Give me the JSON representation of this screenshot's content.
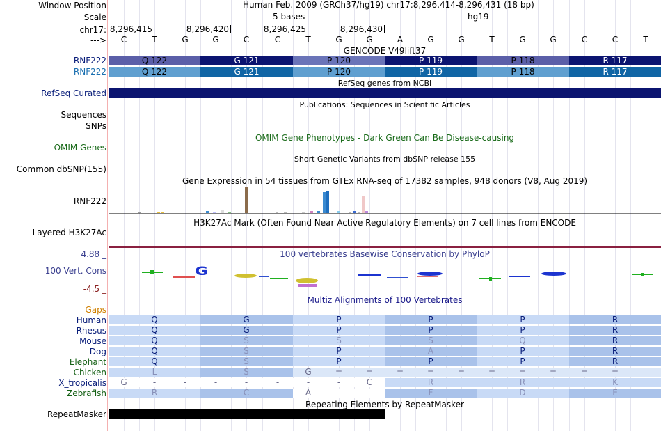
{
  "header": {
    "window_position_label": "Window Position",
    "window_position_value": "Human Feb. 2009 (GRCh37/hg19)   chr17:8,296,414-8,296,431 (18 bp)",
    "scale_label": "Scale",
    "scale_bases": "5 bases",
    "scale_db": "hg19",
    "chrom_label": "chr17:",
    "strand_label": "--->",
    "coords": [
      "8,296,415",
      "8,296,420",
      "8,296,425",
      "8,296,430"
    ],
    "bases": [
      "C",
      "T",
      "G",
      "G",
      "C",
      "C",
      "T",
      "G",
      "G",
      "A",
      "G",
      "G",
      "T",
      "G",
      "G",
      "C",
      "C",
      "T"
    ]
  },
  "gencode": {
    "title": "GENCODE V49lift37",
    "rows": [
      {
        "label": "RNF222",
        "label_color": "#0a1e7a",
        "cells": [
          "Q 122",
          "G 121",
          "P 120",
          "P 119",
          "P 118",
          "R 117"
        ],
        "colors": [
          "#5b5fa8",
          "#0b1470",
          "#6a74b8",
          "#0b1470",
          "#5b5fa8",
          "#0b1470"
        ]
      },
      {
        "label": "RNF222",
        "label_color": "#1a6fb0",
        "cells": [
          "Q 122",
          "G 121",
          "P 120",
          "P 119",
          "P 118",
          "R 117"
        ],
        "colors": [
          "#5f9fd0",
          "#1065a5",
          "#5f9fd0",
          "#1065a5",
          "#5f9fd0",
          "#1065a5"
        ]
      }
    ]
  },
  "refseq": {
    "title": "RefSeq genes from NCBI",
    "label": "RefSeq Curated",
    "color": "#0b1470"
  },
  "publications": {
    "title": "Publications: Sequences in Scientific Articles",
    "label_sequences": "Sequences",
    "label_snps": "SNPs"
  },
  "omim": {
    "title": "OMIM Gene Phenotypes - Dark Green Can Be Disease-causing",
    "label": "OMIM Genes",
    "color": "#1a6b1a"
  },
  "dbsnp": {
    "title": "Short Genetic Variants from dbSNP release 155",
    "label": "Common dbSNP(155)"
  },
  "gtex": {
    "title": "Gene Expression in 54 tissues from GTEx RNA-seq of 17382 samples, 948 donors (V8, Aug 2019)",
    "label": "RNF222"
  },
  "h3k27ac": {
    "title": "H3K27Ac Mark (Often Found Near Active Regulatory Elements) on 7 cell lines from ENCODE",
    "label": "Layered H3K27Ac"
  },
  "phylop": {
    "title": "100 vertebrates Basewise Conservation by PhyloP",
    "label": "100 Vert. Cons",
    "max": "4.88 _",
    "min": "-4.5 _",
    "color": "#3a3f8f"
  },
  "multiz": {
    "title": "Multiz Alignments of 100 Vertebrates",
    "gaps_label": "Gaps",
    "species": [
      {
        "name": "Human",
        "aa": [
          "Q",
          "G",
          "P",
          "P",
          "P",
          "R"
        ]
      },
      {
        "name": "Rhesus",
        "aa": [
          "Q",
          "G",
          "P",
          "P",
          "P",
          "R"
        ]
      },
      {
        "name": "Mouse",
        "aa": [
          "Q",
          "S",
          "S",
          "S",
          "Q",
          "R"
        ]
      },
      {
        "name": "Dog",
        "aa": [
          "Q",
          "S",
          "P",
          "A",
          "P",
          "R"
        ]
      },
      {
        "name": "Elephant",
        "aa": [
          "Q",
          "S",
          "P",
          "P",
          "P",
          "R"
        ]
      },
      {
        "name": "Chicken",
        "aa": [
          "L",
          "S",
          "",
          "",
          "",
          ""
        ]
      },
      {
        "name": "X_tropicalis",
        "aa": [
          "",
          "",
          "",
          "R",
          "R",
          "K"
        ]
      },
      {
        "name": "Zebrafish",
        "aa": [
          "R",
          "C",
          "",
          "F",
          "D",
          "E"
        ]
      }
    ],
    "chicken_bases": [
      "G",
      "=",
      "=",
      "=",
      "=",
      "=",
      "=",
      "=",
      "=",
      "=",
      "="
    ],
    "xtrop_bases": [
      "G",
      "-",
      "-",
      "-",
      "-",
      "-",
      "-",
      "-",
      "C"
    ],
    "zebra_bases": [
      "A",
      "-",
      "-"
    ]
  },
  "repeatmasker": {
    "title": "Repeating Elements by RepeatMasker",
    "label": "RepeatMasker"
  }
}
